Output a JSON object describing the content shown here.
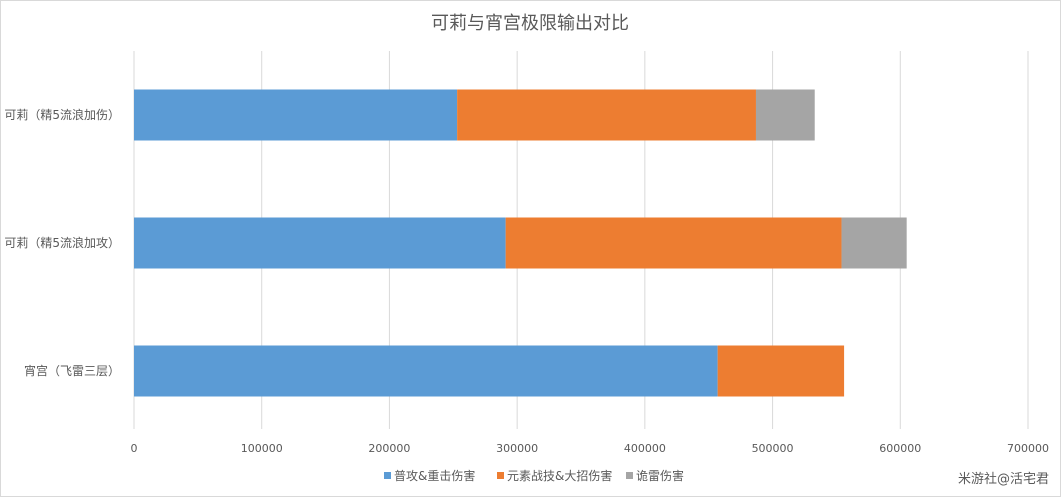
{
  "chart_data": {
    "type": "bar",
    "orientation": "horizontal",
    "stacked": true,
    "title": "可莉与宵宫极限输出对比",
    "categories": [
      "可莉（精5流浪加伤）",
      "可莉（精5流浪加攻）",
      "宵宫（飞雷三层）"
    ],
    "series": [
      {
        "name": "普攻&重击伤害",
        "color": "#5b9bd5",
        "values": [
          253000,
          291000,
          457000
        ]
      },
      {
        "name": "元素战技&大招伤害",
        "color": "#ed7d31",
        "values": [
          234000,
          263000,
          99000
        ]
      },
      {
        "name": "诡雷伤害",
        "color": "#a5a5a5",
        "values": [
          46000,
          51000,
          0
        ]
      }
    ],
    "xlim": [
      0,
      700000
    ],
    "xticks": [
      0,
      100000,
      200000,
      300000,
      400000,
      500000,
      600000,
      700000
    ],
    "grid": true,
    "legend": "bottom",
    "xlabel": "",
    "ylabel": ""
  },
  "watermark": "米游社@活宅君"
}
